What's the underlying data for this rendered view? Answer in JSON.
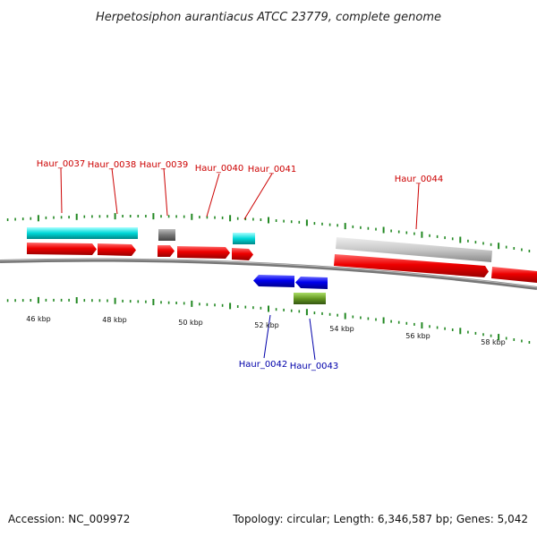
{
  "title": "Herpetosiphon aurantiacus ATCC 23779, complete genome",
  "footer": {
    "accession": "Accession: NC_009972",
    "summary": "Topology: circular; Length: 6,346,587 bp; Genes: 5,042"
  },
  "axis": {
    "unit": "kbp",
    "ticks": [
      "46 kbp",
      "48 kbp",
      "50 kbp",
      "52 kbp",
      "54 kbp",
      "56 kbp",
      "58 kbp"
    ]
  },
  "genes": [
    {
      "name": "Haur_0037",
      "strand": "+"
    },
    {
      "name": "Haur_0038",
      "strand": "+"
    },
    {
      "name": "Haur_0039",
      "strand": "+"
    },
    {
      "name": "Haur_0040",
      "strand": "+"
    },
    {
      "name": "Haur_0041",
      "strand": "+"
    },
    {
      "name": "Haur_0042",
      "strand": "-"
    },
    {
      "name": "Haur_0043",
      "strand": "-"
    },
    {
      "name": "Haur_0044",
      "strand": "+"
    }
  ],
  "colors": {
    "forward_gene": "#ee0000",
    "reverse_gene": "#0000ee",
    "label_forward": "#cc0000",
    "label_reverse": "#0000aa",
    "cyan_feature": "#00cccc",
    "gray_feature": "#888888",
    "lightgray_feature": "#c8c8c8",
    "green_feature": "#669922",
    "tick": "#228822",
    "backbone": "#888888"
  }
}
